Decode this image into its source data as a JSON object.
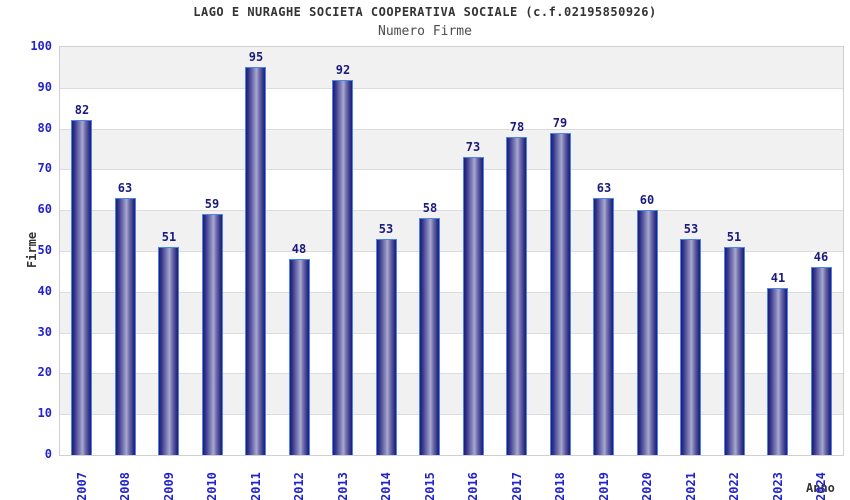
{
  "chart_data": {
    "type": "bar",
    "title": "LAGO E NURAGHE SOCIETA COOPERATIVA SOCIALE (c.f.02195850926)",
    "subtitle": "Numero Firme",
    "xlabel": "Anno",
    "ylabel": "Firme",
    "categories": [
      "2007",
      "2008",
      "2009",
      "2010",
      "2011",
      "2012",
      "2013",
      "2014",
      "2015",
      "2016",
      "2017",
      "2018",
      "2019",
      "2020",
      "2021",
      "2022",
      "2023",
      "2024"
    ],
    "values": [
      82,
      63,
      51,
      59,
      95,
      48,
      92,
      53,
      58,
      73,
      78,
      79,
      63,
      60,
      53,
      51,
      41,
      46
    ],
    "ylim": [
      0,
      100
    ],
    "ytick_step": 10,
    "grid": "horizontal-bands",
    "legend": "none",
    "colors": {
      "bar_dark": "#1e1e78",
      "bar_mid": "#32328a",
      "bar_light": "#a8a8d2",
      "bar_border": "#4a86e8",
      "value_label": "#1b1b7e",
      "tick_label": "#2323cd",
      "band_gray": "#f1f1f1",
      "band_white": "#ffffff",
      "gridline": "#dcdcdc",
      "plot_border": "#d0d0d0",
      "title_color": "#333333",
      "subtitle_color": "#4d4d4d"
    }
  }
}
